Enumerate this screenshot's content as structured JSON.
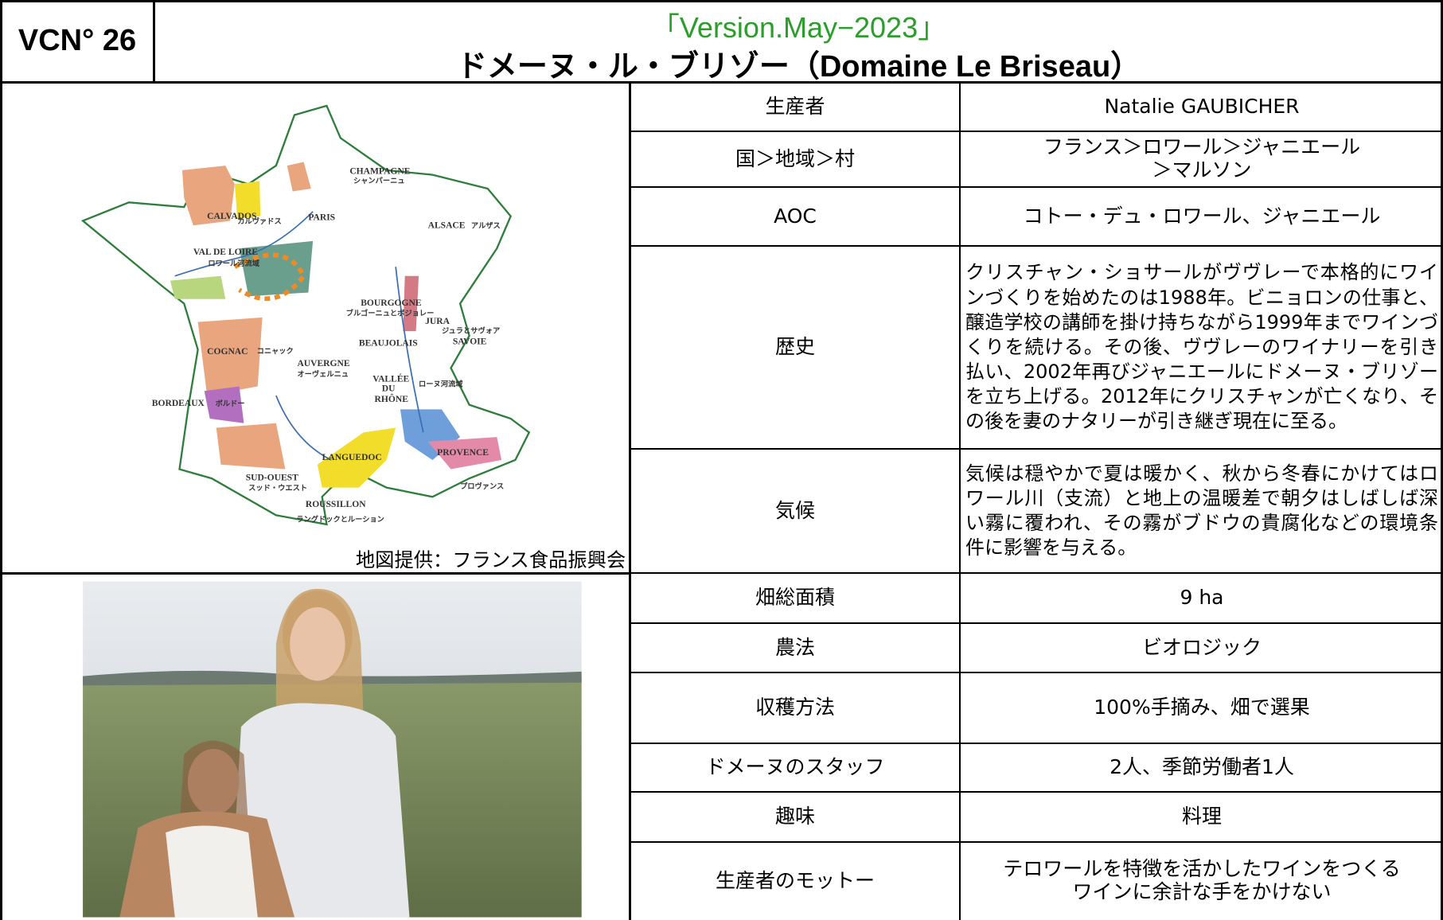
{
  "header": {
    "code": "VCN° 26",
    "version": "「Version.May−2023」",
    "title": "ドメーヌ・ル・ブリゾー（Domaine Le Briseau）"
  },
  "map": {
    "caption": "地図提供：フランス食品振興会",
    "labels": [
      "CHAMPAGNE",
      "シャンパーニュ",
      "ALSACE",
      "アルザス",
      "CALVADOS",
      "カルヴァドス",
      "PARIS",
      "VAL DE LOIRE",
      "ロワール河流域",
      "BOURGOGNE",
      "ブルゴーニュとボジョレー",
      "JURA",
      "ジュラとサヴォア",
      "SAVOIE",
      "BEAUJOLAIS",
      "COGNAC",
      "コニャック",
      "AUVERGNE",
      "オーヴェルニュ",
      "VALLÉE",
      "DU",
      "RHÔNE",
      "ローヌ河流域",
      "BORDEAUX",
      "ボルドー",
      "LANGUEDOC",
      "PROVENCE",
      "プロヴァンス",
      "SUD-OUEST",
      "スッド・ウエスト",
      "ROUSSILLON",
      "ラングドックとルーション"
    ]
  },
  "table": {
    "rows": [
      [
        "生産者",
        [
          "Natalie GAUBICHER"
        ]
      ],
      [
        "国＞地域＞村",
        [
          "フランス＞ロワール＞ジャニエール",
          "＞マルソン"
        ]
      ],
      [
        "AOC",
        [
          "コトー・デュ・ロワール、ジャニエール"
        ]
      ],
      [
        "歴史",
        [
          "クリスチャン・ショサールがヴヴレーで本格的にワインづくりを始めたのは1988年。ビニョロンの仕事と、醸造学校の講師を掛け持ちながら1999年までワインづくりを続ける。その後、ヴヴレーのワイナリーを引き払い、2002年再びジャニエールにドメーヌ・ブリゾーを立ち上げる。2012年にクリスチャンが亡くなり、その後を妻のナタリーが引き継ぎ現在に至る。"
        ]
      ],
      [
        "気候",
        [
          "気候は穏やかで夏は暖かく、秋から冬春にかけてはロワール川（支流）と地上の温暖差で朝夕はしばしば深い霧に覆われ、その霧がブドウの貴腐化などの環境条件に影響を与える。"
        ]
      ],
      [
        "畑総面積",
        [
          "9 ha"
        ]
      ],
      [
        "農法",
        [
          "ビオロジック"
        ]
      ],
      [
        "収穫方法",
        [
          "100%手摘み、畑で選果"
        ]
      ],
      [
        "ドメーヌのスタッフ",
        [
          "2人、季節労働者1人"
        ]
      ],
      [
        "趣味",
        [
          "料理"
        ]
      ],
      [
        "生産者のモットー",
        [
          "テロワールを特徴を活かしたワインをつくる",
          "ワインに余計な手をかけない"
        ]
      ]
    ]
  }
}
